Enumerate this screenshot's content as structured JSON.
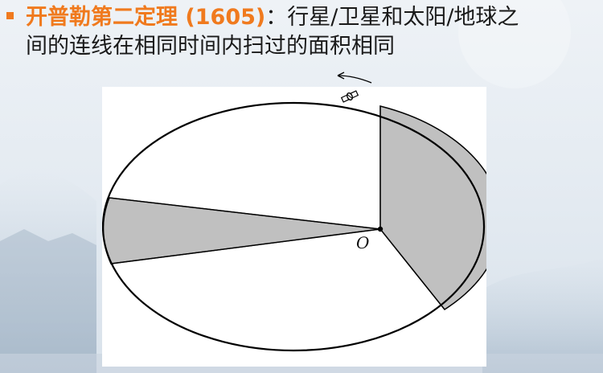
{
  "slide": {
    "title_highlight": "开普勒第二定理 (1605)",
    "title_rest": "：行星/卫星和太阳/地球之",
    "title_line2": "间的连线在相同时间内扫过的面积相同"
  },
  "diagram": {
    "center_label": "O",
    "colors": {
      "accent": "#f07a1e",
      "sector_fill": "#c0c0c0",
      "ellipse_stroke": "#000000",
      "figure_background": "#ffffff"
    }
  }
}
